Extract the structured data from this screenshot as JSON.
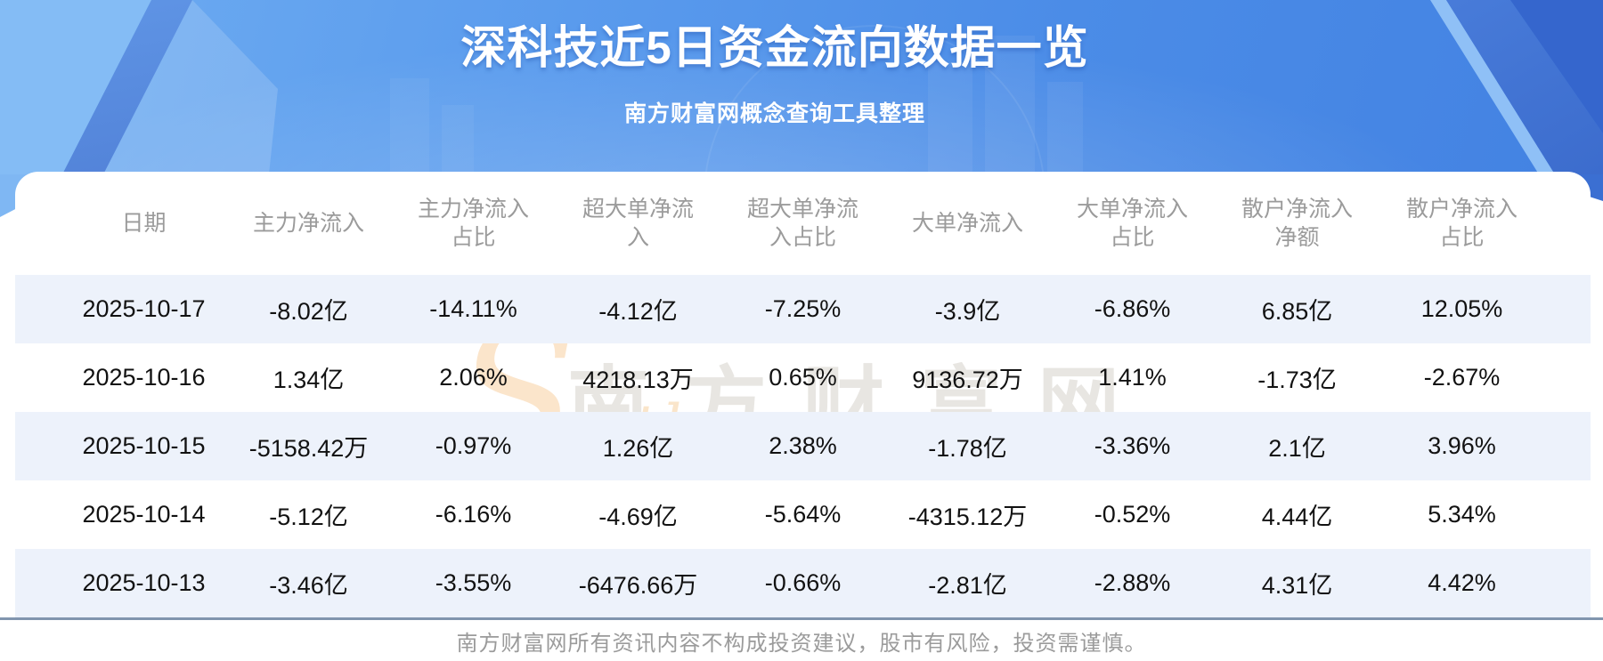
{
  "header": {
    "title": "深科技近5日资金流向数据一览",
    "subtitle": "南方财富网概念查询工具整理"
  },
  "table": {
    "columns": [
      "日期",
      "主力净流入",
      "主力净流入占比",
      "超大单净流入",
      "超大单净流入占比",
      "大单净流入",
      "大单净流入占比",
      "散户净流入净额",
      "散户净流入占比"
    ],
    "rows": [
      [
        "2025-10-17",
        "-8.02亿",
        "-14.11%",
        "-4.12亿",
        "-7.25%",
        "-3.9亿",
        "-6.86%",
        "6.85亿",
        "12.05%"
      ],
      [
        "2025-10-16",
        "1.34亿",
        "2.06%",
        "4218.13万",
        "0.65%",
        "9136.72万",
        "1.41%",
        "-1.73亿",
        "-2.67%"
      ],
      [
        "2025-10-15",
        "-5158.42万",
        "-0.97%",
        "1.26亿",
        "2.38%",
        "-1.78亿",
        "-3.36%",
        "2.1亿",
        "3.96%"
      ],
      [
        "2025-10-14",
        "-5.12亿",
        "-6.16%",
        "-4.69亿",
        "-5.64%",
        "-4315.12万",
        "-0.52%",
        "4.44亿",
        "5.34%"
      ],
      [
        "2025-10-13",
        "-3.46亿",
        "-3.55%",
        "-6476.66万",
        "-0.66%",
        "-2.81亿",
        "-2.88%",
        "4.31亿",
        "4.42%"
      ]
    ]
  },
  "watermark": {
    "swoosh": "S",
    "latin": "outhmoney.com",
    "cjk": "南方财富网"
  },
  "footer": {
    "disclaimer": "南方财富网所有资讯内容不构成投资建议，股市有风险，投资需谨慎。"
  },
  "colors": {
    "banner_blue_light": "#6fadf1",
    "banner_blue_dark": "#4382e2",
    "row_stripe": "#edf2fb",
    "divider": "#8195ae",
    "header_text": "#9b9b9b",
    "cell_text": "#121212",
    "watermark_orange": "#f6c68c"
  }
}
